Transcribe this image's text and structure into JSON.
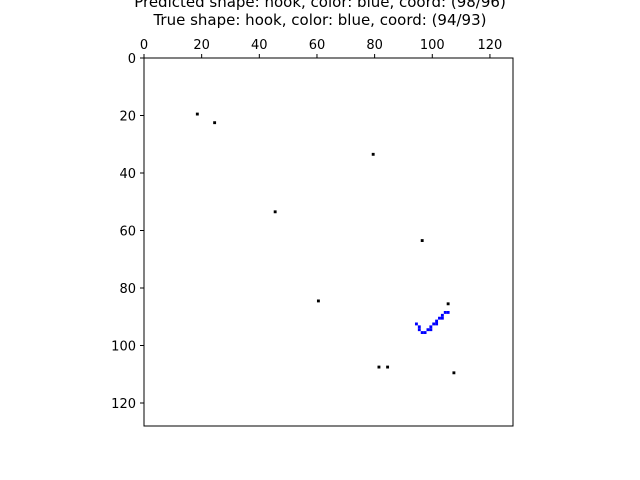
{
  "chart_data": {
    "type": "scatter",
    "title_lines": [
      "Predicted shape: hook, color: blue, coord: (98/96)",
      "True shape: hook, color: blue, coord: (94/93)"
    ],
    "xlim": [
      0,
      128
    ],
    "ylim": [
      128,
      0
    ],
    "x_axis_position": "top",
    "y_axis_inverted": true,
    "grid": false,
    "xticks": [
      0,
      20,
      40,
      60,
      80,
      100,
      120
    ],
    "yticks": [
      0,
      20,
      40,
      60,
      80,
      100,
      120
    ],
    "colors": {
      "noise": "#000000",
      "shape": "#0000ff",
      "frame": "#000000"
    },
    "noise_points": [
      [
        18,
        19
      ],
      [
        24,
        22
      ],
      [
        79,
        33
      ],
      [
        45,
        53
      ],
      [
        96,
        63
      ],
      [
        60,
        84
      ],
      [
        105,
        85
      ],
      [
        81,
        107
      ],
      [
        84,
        107
      ],
      [
        107,
        109
      ]
    ],
    "shape": {
      "name": "hook",
      "color": "blue",
      "points": [
        [
          94,
          92
        ],
        [
          95,
          93
        ],
        [
          95,
          94
        ],
        [
          96,
          95
        ],
        [
          97,
          95
        ],
        [
          98,
          94
        ],
        [
          99,
          94
        ],
        [
          99,
          93
        ],
        [
          100,
          92
        ],
        [
          101,
          92
        ],
        [
          101,
          91
        ],
        [
          102,
          90
        ],
        [
          103,
          90
        ],
        [
          103,
          89
        ],
        [
          104,
          88
        ],
        [
          105,
          88
        ]
      ]
    }
  }
}
